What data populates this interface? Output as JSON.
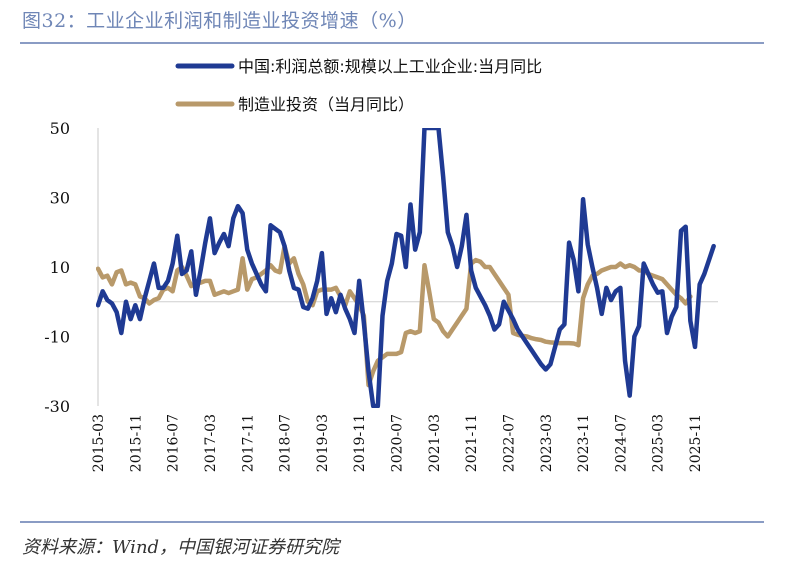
{
  "header": {
    "title": "图32：工业企业利润和制造业投资增速（%）"
  },
  "footer": {
    "source": "资料来源：Wind，中国银河证券研究院"
  },
  "chart_data": {
    "type": "line",
    "title": "图32：工业企业利润和制造业投资增速（%）",
    "ylim": [
      -30,
      50
    ],
    "yticks": [
      "50",
      "30",
      "10",
      "-10",
      "-30"
    ],
    "ytick_values": [
      50,
      30,
      10,
      -10,
      -30
    ],
    "xticks": [
      "2015-03",
      "2015-11",
      "2016-07",
      "2017-03",
      "2017-11",
      "2018-07",
      "2019-03",
      "2019-11",
      "2020-07",
      "2021-03",
      "2021-11",
      "2022-07",
      "2023-03",
      "2023-11",
      "2024-07",
      "2025-03",
      "2025-11"
    ],
    "grid": false,
    "legend_position": "top",
    "colors": {
      "profit": "#1f3a93",
      "investment": "#b8996a"
    },
    "series": [
      {
        "name": "中国:利润总额:规模以上工业企业:当月同比",
        "color": "#1f3a93",
        "points": [
          [
            "2015-03",
            -1
          ],
          [
            "2015-04",
            3
          ],
          [
            "2015-05",
            0.5
          ],
          [
            "2015-06",
            -0.5
          ],
          [
            "2015-07",
            -3
          ],
          [
            "2015-08",
            -9
          ],
          [
            "2015-09",
            0
          ],
          [
            "2015-10",
            -5
          ],
          [
            "2015-11",
            -1
          ],
          [
            "2015-12",
            -5
          ],
          [
            "2016-01",
            1
          ],
          [
            "2016-02",
            6
          ],
          [
            "2016-03",
            11
          ],
          [
            "2016-04",
            4
          ],
          [
            "2016-05",
            4
          ],
          [
            "2016-06",
            6
          ],
          [
            "2016-07",
            11
          ],
          [
            "2016-08",
            19
          ],
          [
            "2016-09",
            8
          ],
          [
            "2016-10",
            9
          ],
          [
            "2016-11",
            14.5
          ],
          [
            "2016-12",
            2
          ],
          [
            "2017-01",
            9
          ],
          [
            "2017-02",
            17
          ],
          [
            "2017-03",
            24
          ],
          [
            "2017-04",
            14
          ],
          [
            "2017-05",
            17
          ],
          [
            "2017-06",
            19.5
          ],
          [
            "2017-07",
            16
          ],
          [
            "2017-08",
            24
          ],
          [
            "2017-09",
            27.5
          ],
          [
            "2017-10",
            25.5
          ],
          [
            "2017-11",
            15
          ],
          [
            "2017-12",
            11
          ],
          [
            "2018-01",
            8
          ],
          [
            "2018-02",
            5
          ],
          [
            "2018-03",
            3
          ],
          [
            "2018-04",
            22
          ],
          [
            "2018-05",
            21
          ],
          [
            "2018-06",
            20
          ],
          [
            "2018-07",
            16
          ],
          [
            "2018-08",
            9
          ],
          [
            "2018-09",
            4
          ],
          [
            "2018-10",
            3.5
          ],
          [
            "2018-11",
            -1.5
          ],
          [
            "2018-12",
            -2
          ],
          [
            "2019-01",
            1
          ],
          [
            "2019-02",
            6
          ],
          [
            "2019-03",
            14
          ],
          [
            "2019-04",
            -3.5
          ],
          [
            "2019-05",
            1
          ],
          [
            "2019-06",
            -3
          ],
          [
            "2019-07",
            2
          ],
          [
            "2019-08",
            -2
          ],
          [
            "2019-09",
            -5
          ],
          [
            "2019-10",
            -9
          ],
          [
            "2019-11",
            6
          ],
          [
            "2019-12",
            -6
          ],
          [
            "2020-01",
            -20
          ],
          [
            "2020-02",
            -30
          ],
          [
            "2020-03",
            -30
          ],
          [
            "2020-04",
            -4
          ],
          [
            "2020-05",
            6
          ],
          [
            "2020-06",
            11
          ],
          [
            "2020-07",
            19.5
          ],
          [
            "2020-08",
            19
          ],
          [
            "2020-09",
            10
          ],
          [
            "2020-10",
            28
          ],
          [
            "2020-11",
            15
          ],
          [
            "2020-12",
            20
          ],
          [
            "2021-01",
            50
          ],
          [
            "2021-02",
            50
          ],
          [
            "2021-03",
            50
          ],
          [
            "2021-04",
            50
          ],
          [
            "2021-05",
            36
          ],
          [
            "2021-06",
            20
          ],
          [
            "2021-07",
            16
          ],
          [
            "2021-08",
            10
          ],
          [
            "2021-09",
            16
          ],
          [
            "2021-10",
            25
          ],
          [
            "2021-11",
            9
          ],
          [
            "2021-12",
            4
          ],
          [
            "2022-01",
            1.5
          ],
          [
            "2022-02",
            -1
          ],
          [
            "2022-03",
            -4
          ],
          [
            "2022-04",
            -8
          ],
          [
            "2022-05",
            -6.5
          ],
          [
            "2022-06",
            0
          ],
          [
            "2022-07",
            -2.5
          ],
          [
            "2022-08",
            -5
          ],
          [
            "2022-09",
            -8
          ],
          [
            "2022-10",
            -10
          ],
          [
            "2022-11",
            -12
          ],
          [
            "2022-12",
            -14
          ],
          [
            "2023-01",
            -16
          ],
          [
            "2023-02",
            -18
          ],
          [
            "2023-03",
            -19.5
          ],
          [
            "2023-04",
            -18
          ],
          [
            "2023-05",
            -13
          ],
          [
            "2023-06",
            -8
          ],
          [
            "2023-07",
            -6.5
          ],
          [
            "2023-08",
            17
          ],
          [
            "2023-09",
            12
          ],
          [
            "2023-10",
            3
          ],
          [
            "2023-11",
            29.5
          ],
          [
            "2023-12",
            16.5
          ],
          [
            "2024-01",
            10
          ],
          [
            "2024-02",
            4
          ],
          [
            "2024-03",
            -3.5
          ],
          [
            "2024-04",
            4
          ],
          [
            "2024-05",
            0.5
          ],
          [
            "2024-06",
            3
          ],
          [
            "2024-07",
            4
          ],
          [
            "2024-08",
            -17
          ],
          [
            "2024-09",
            -27
          ],
          [
            "2024-10",
            -10
          ],
          [
            "2024-11",
            -7
          ],
          [
            "2024-12",
            11
          ],
          [
            "2025-01",
            8
          ],
          [
            "2025-02",
            5
          ],
          [
            "2025-03",
            2.6
          ],
          [
            "2025-04",
            3
          ],
          [
            "2025-05",
            -9
          ],
          [
            "2025-06",
            -4.3
          ],
          [
            "2025-07",
            -1.5
          ],
          [
            "2025-08",
            20.4
          ],
          [
            "2025-09",
            21.6
          ],
          [
            "2025-10",
            -5.5
          ],
          [
            "2025-11",
            -13
          ],
          [
            "2025-12",
            5
          ],
          [
            "2026-01",
            8
          ],
          [
            "2026-02",
            12
          ],
          [
            "2026-03",
            16
          ]
        ]
      },
      {
        "name": "制造业投资（当月同比）",
        "color": "#b8996a",
        "points": [
          [
            "2015-03",
            9.5
          ],
          [
            "2015-04",
            7
          ],
          [
            "2015-05",
            7.5
          ],
          [
            "2015-06",
            5
          ],
          [
            "2015-07",
            8.5
          ],
          [
            "2015-08",
            9
          ],
          [
            "2015-09",
            5
          ],
          [
            "2015-10",
            5.5
          ],
          [
            "2015-11",
            5
          ],
          [
            "2015-12",
            1.5
          ],
          [
            "2016-01",
            1
          ],
          [
            "2016-02",
            -0.5
          ],
          [
            "2016-03",
            0.5
          ],
          [
            "2016-04",
            1
          ],
          [
            "2016-05",
            3.5
          ],
          [
            "2016-06",
            4
          ],
          [
            "2016-07",
            3
          ],
          [
            "2016-08",
            9
          ],
          [
            "2016-09",
            10
          ],
          [
            "2016-10",
            7.5
          ],
          [
            "2016-11",
            4.5
          ],
          [
            "2016-12",
            5.5
          ],
          [
            "2017-01",
            5.5
          ],
          [
            "2017-02",
            6
          ],
          [
            "2017-03",
            6
          ],
          [
            "2017-04",
            2
          ],
          [
            "2017-05",
            2.5
          ],
          [
            "2017-06",
            3
          ],
          [
            "2017-07",
            2.5
          ],
          [
            "2017-08",
            3
          ],
          [
            "2017-09",
            3.5
          ],
          [
            "2017-10",
            12.5
          ],
          [
            "2017-11",
            3.5
          ],
          [
            "2017-12",
            6.5
          ],
          [
            "2018-01",
            7
          ],
          [
            "2018-02",
            8
          ],
          [
            "2018-03",
            9
          ],
          [
            "2018-04",
            10.5
          ],
          [
            "2018-05",
            9
          ],
          [
            "2018-06",
            8.5
          ],
          [
            "2018-07",
            16
          ],
          [
            "2018-08",
            11
          ],
          [
            "2018-09",
            12.5
          ],
          [
            "2018-10",
            8
          ],
          [
            "2018-11",
            5
          ],
          [
            "2018-12",
            0
          ],
          [
            "2019-01",
            -1
          ],
          [
            "2019-02",
            3
          ],
          [
            "2019-03",
            3.5
          ],
          [
            "2019-04",
            3.5
          ],
          [
            "2019-05",
            3.5
          ],
          [
            "2019-06",
            4
          ],
          [
            "2019-07",
            1.5
          ],
          [
            "2019-08",
            -1
          ],
          [
            "2019-09",
            3
          ],
          [
            "2019-10",
            1
          ],
          [
            "2019-11",
            -1
          ],
          [
            "2019-12",
            -4
          ],
          [
            "2020-01",
            -24
          ],
          [
            "2020-02",
            -20
          ],
          [
            "2020-03",
            -17
          ],
          [
            "2020-04",
            -16
          ],
          [
            "2020-05",
            -15
          ],
          [
            "2020-06",
            -15
          ],
          [
            "2020-07",
            -15
          ],
          [
            "2020-08",
            -14.5
          ],
          [
            "2020-09",
            -9
          ],
          [
            "2020-10",
            -8.5
          ],
          [
            "2020-11",
            -9
          ],
          [
            "2020-12",
            -8.5
          ],
          [
            "2021-01",
            10.5
          ],
          [
            "2021-02",
            3
          ],
          [
            "2021-03",
            -5
          ],
          [
            "2021-04",
            -6
          ],
          [
            "2021-05",
            -8.5
          ],
          [
            "2021-06",
            -10
          ],
          [
            "2021-07",
            -8
          ],
          [
            "2021-08",
            -6
          ],
          [
            "2021-09",
            -4
          ],
          [
            "2021-10",
            -2
          ],
          [
            "2021-11",
            11
          ],
          [
            "2021-12",
            12
          ],
          [
            "2022-01",
            11.5
          ],
          [
            "2022-02",
            10
          ],
          [
            "2022-03",
            10
          ],
          [
            "2022-04",
            8
          ],
          [
            "2022-05",
            6
          ],
          [
            "2022-06",
            4
          ],
          [
            "2022-07",
            2
          ],
          [
            "2022-08",
            -9
          ],
          [
            "2022-09",
            -9.5
          ],
          [
            "2022-10",
            -9.8
          ],
          [
            "2022-11",
            -10
          ],
          [
            "2022-12",
            -10.5
          ],
          [
            "2023-01",
            -10.8
          ],
          [
            "2023-02",
            -11
          ],
          [
            "2023-03",
            -11.5
          ],
          [
            "2023-04",
            -11.7
          ],
          [
            "2023-05",
            -11.8
          ],
          [
            "2023-06",
            -11.9
          ],
          [
            "2023-07",
            -11.9
          ],
          [
            "2023-08",
            -11.9
          ],
          [
            "2023-09",
            -12
          ],
          [
            "2023-10",
            -12.5
          ],
          [
            "2023-11",
            1
          ],
          [
            "2023-12",
            5
          ],
          [
            "2024-01",
            7.5
          ],
          [
            "2024-02",
            8
          ],
          [
            "2024-03",
            9
          ],
          [
            "2024-04",
            9.5
          ],
          [
            "2024-05",
            10
          ],
          [
            "2024-06",
            10
          ],
          [
            "2024-07",
            11
          ],
          [
            "2024-08",
            10
          ],
          [
            "2024-09",
            10.5
          ],
          [
            "2024-10",
            10
          ],
          [
            "2024-11",
            9
          ],
          [
            "2024-12",
            9
          ],
          [
            "2025-01",
            8
          ],
          [
            "2025-02",
            7.5
          ],
          [
            "2025-03",
            7
          ],
          [
            "2025-04",
            6.5
          ],
          [
            "2025-05",
            5
          ],
          [
            "2025-06",
            3.5
          ],
          [
            "2025-07",
            2
          ],
          [
            "2025-08",
            1
          ],
          [
            "2025-09",
            -0.5
          ],
          [
            "2025-10",
            1.5
          ]
        ]
      }
    ]
  }
}
